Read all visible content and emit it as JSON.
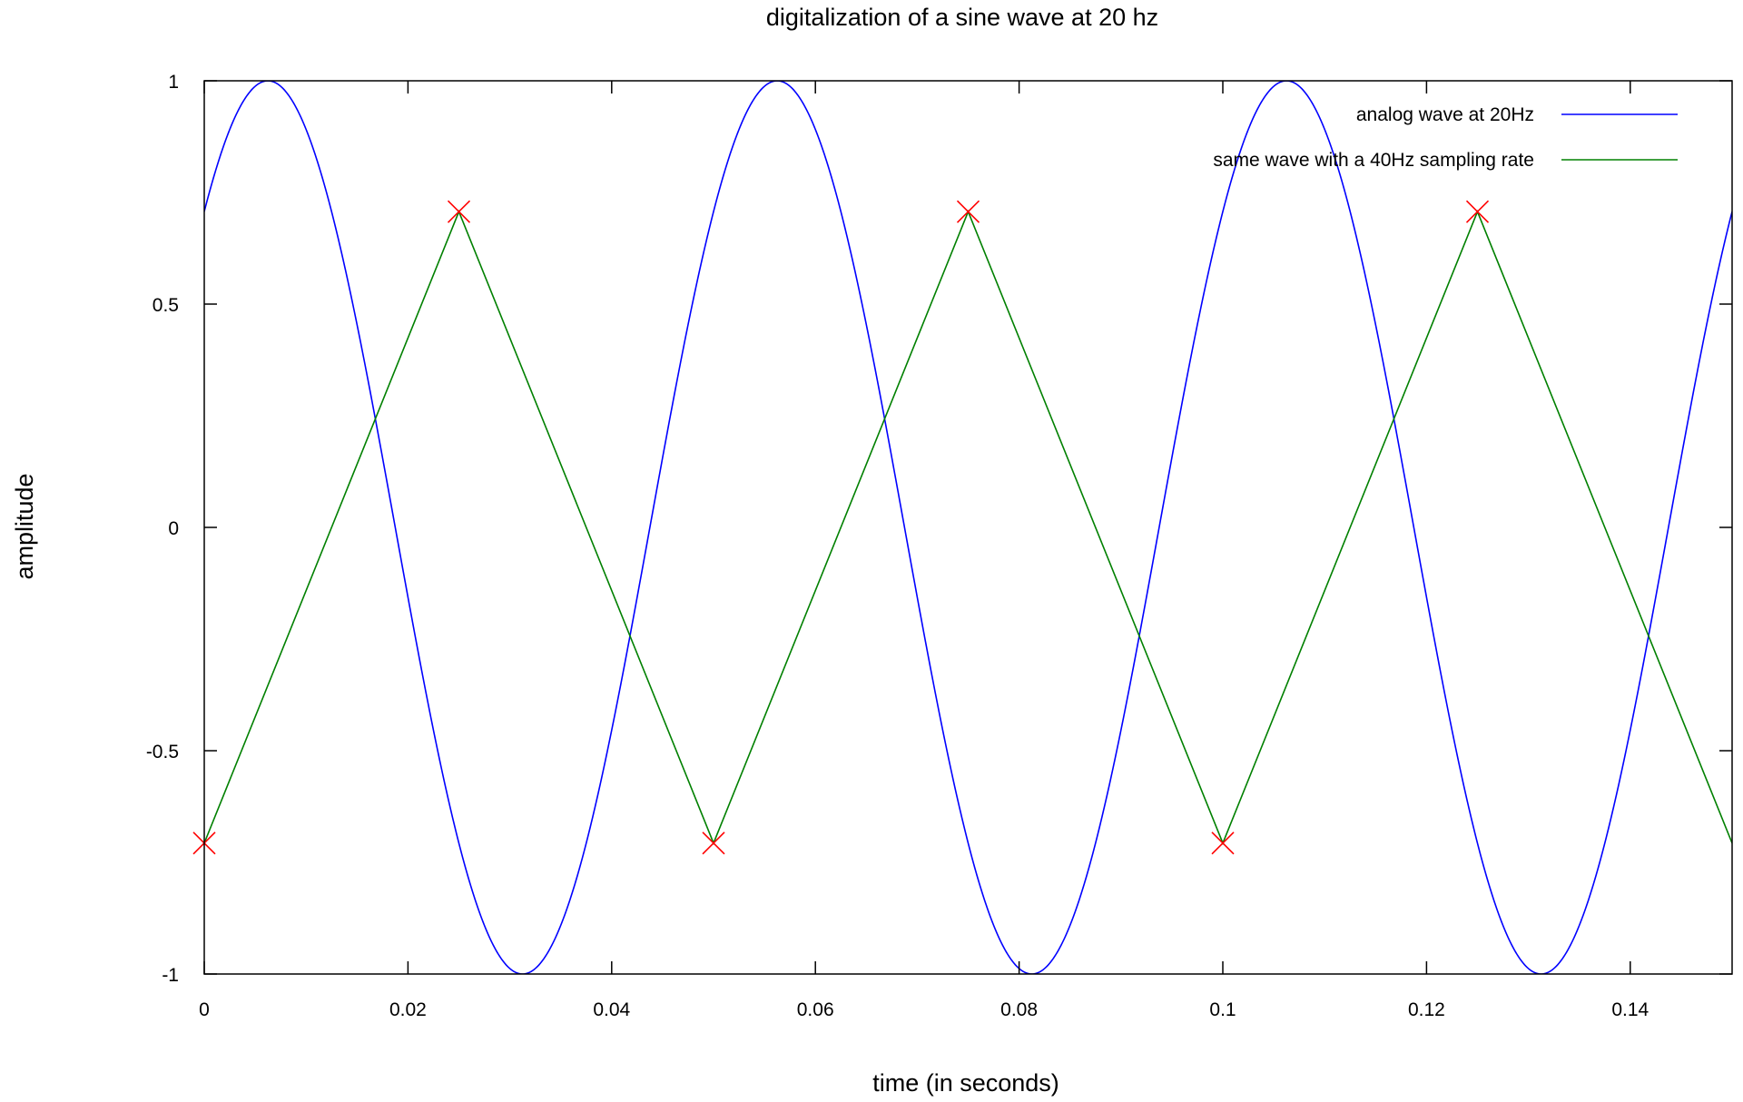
{
  "chart_data": {
    "type": "line",
    "title": "digitalization of a sine wave at 20 hz",
    "xlabel": "time (in seconds)",
    "ylabel": "amplitude",
    "xlim": [
      0,
      0.15
    ],
    "ylim": [
      -1,
      1
    ],
    "x_ticks": [
      {
        "value": 0,
        "label": "0"
      },
      {
        "value": 0.02,
        "label": "0.02"
      },
      {
        "value": 0.04,
        "label": "0.04"
      },
      {
        "value": 0.06,
        "label": "0.06"
      },
      {
        "value": 0.08,
        "label": "0.08"
      },
      {
        "value": 0.1,
        "label": "0.1"
      },
      {
        "value": 0.12,
        "label": "0.12"
      },
      {
        "value": 0.14,
        "label": "0.14"
      }
    ],
    "y_ticks": [
      {
        "value": -1,
        "label": "-1"
      },
      {
        "value": -0.5,
        "label": "-0.5"
      },
      {
        "value": 0,
        "label": "0"
      },
      {
        "value": 0.5,
        "label": "0.5"
      },
      {
        "value": 1,
        "label": "1"
      }
    ],
    "grid": false,
    "legend_position": "top-right",
    "series": [
      {
        "name": "analog wave at 20Hz",
        "kind": "sine",
        "frequency_hz": 20,
        "amplitude": 1,
        "phase_offset_s": -0.04375,
        "color": "#0000ff"
      },
      {
        "name": "same wave with a 40Hz sampling rate",
        "kind": "polyline",
        "color": "#008000",
        "x": [
          0,
          0.025,
          0.05,
          0.075,
          0.1,
          0.125,
          0.15
        ],
        "y": [
          -0.707,
          0.707,
          -0.707,
          0.707,
          -0.707,
          0.707,
          -0.707
        ]
      }
    ],
    "sample_markers": {
      "color": "#ff0000",
      "shape": "x",
      "x": [
        0,
        0.025,
        0.05,
        0.075,
        0.1,
        0.125
      ],
      "y": [
        -0.707,
        0.707,
        -0.707,
        0.707,
        -0.707,
        0.707
      ]
    }
  }
}
